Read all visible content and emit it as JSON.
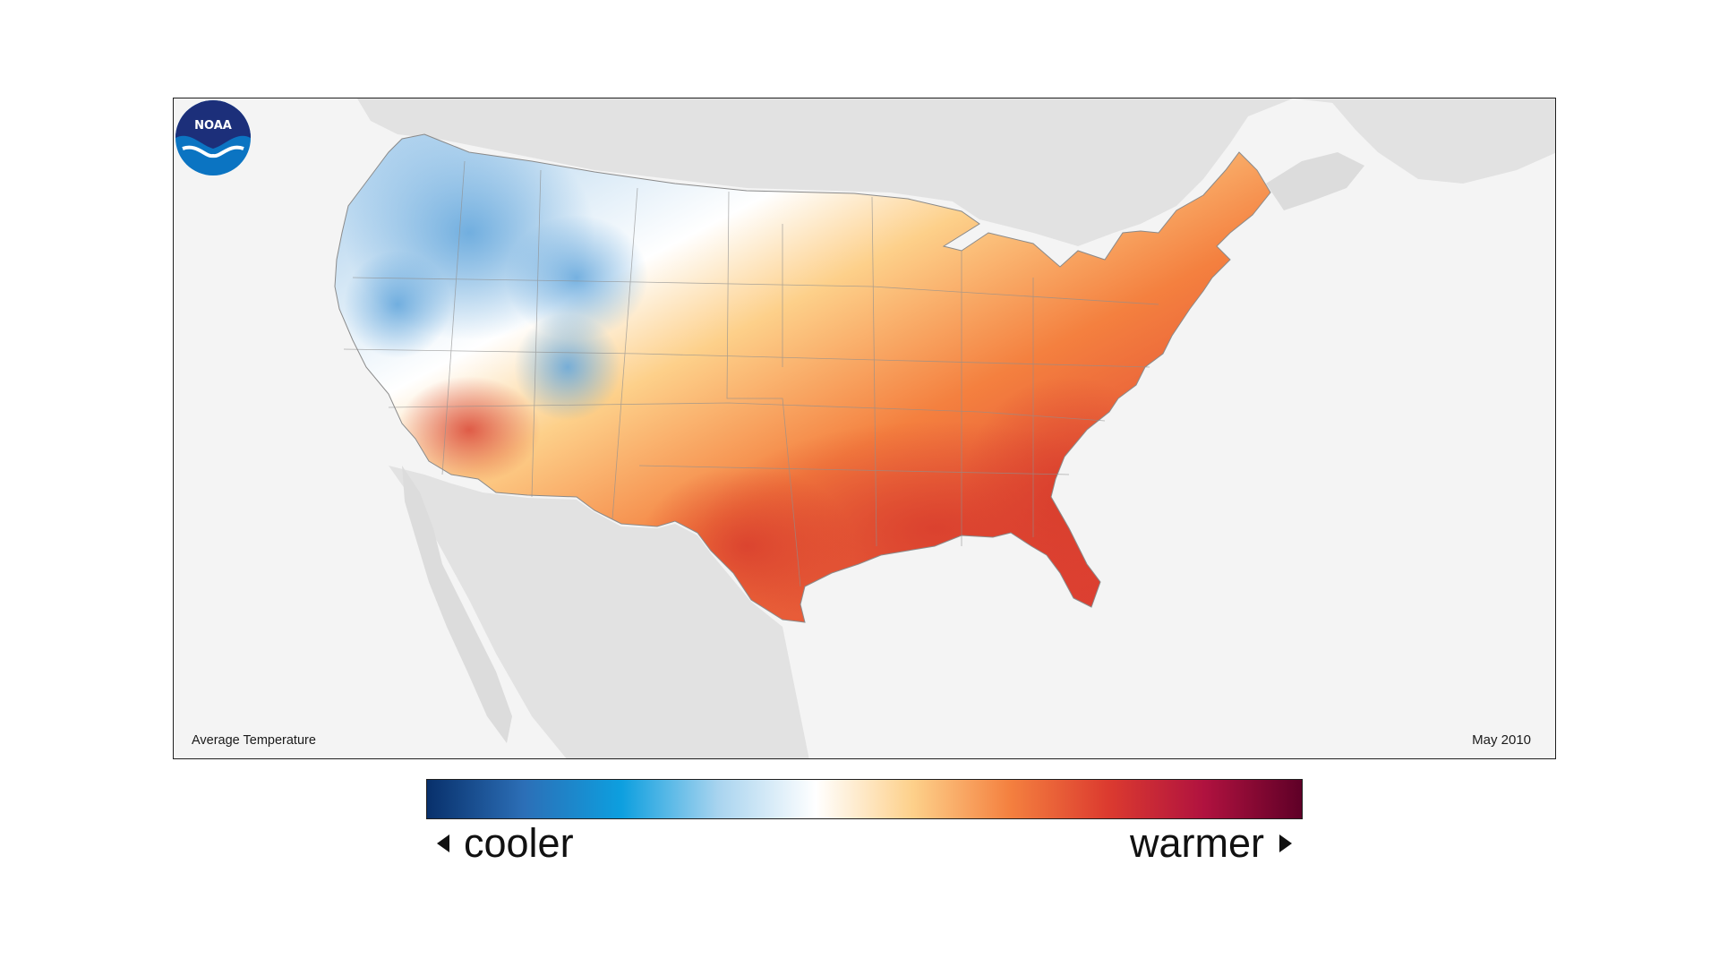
{
  "map": {
    "title": "Average Temperature",
    "date": "May 2010",
    "logo_text": "NOAA",
    "background_land_color": "#e2e2e2",
    "ocean_color": "#f4f4f4"
  },
  "legend": {
    "low_label": "cooler",
    "high_label": "warmer",
    "colors": [
      "#08306b",
      "#2c6fb7",
      "#0d9fdf",
      "#a9d4ef",
      "#ffffff",
      "#fdd08a",
      "#f4803f",
      "#dc3b2f",
      "#b0123f",
      "#5f0027"
    ]
  }
}
